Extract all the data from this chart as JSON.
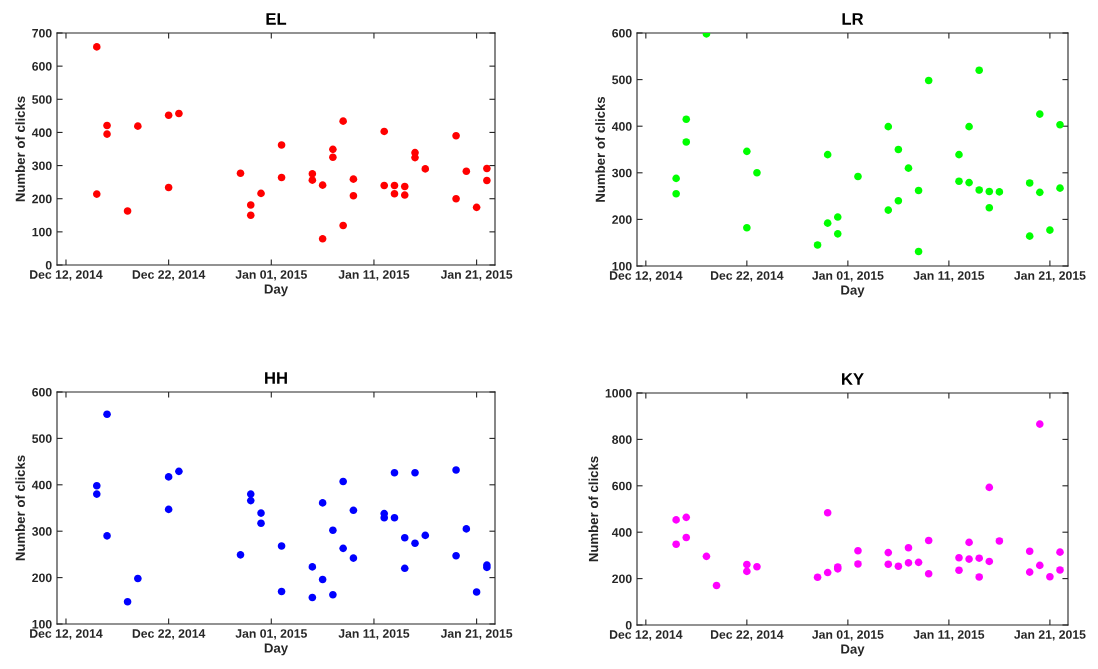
{
  "chart_data": [
    {
      "type": "scatter",
      "title": "EL",
      "xlabel": "Day",
      "ylabel": "Number of clicks",
      "marker": "circle",
      "grid": false,
      "xlim": [
        "2014-12-11T03:00",
        "2015-01-22T19:00"
      ],
      "xticks": [
        {
          "value": "2014-12-12",
          "label": "Dec 12, 2014"
        },
        {
          "value": "2014-12-22",
          "label": "Dec 22, 2014"
        },
        {
          "value": "2015-01-01",
          "label": "Jan 01, 2015"
        },
        {
          "value": "2015-01-11",
          "label": "Jan 11, 2015"
        },
        {
          "value": "2015-01-21",
          "label": "Jan 21, 2015"
        }
      ],
      "ylim": [
        0,
        700
      ],
      "yticks": [
        0,
        100,
        200,
        300,
        400,
        500,
        600,
        700
      ],
      "series": [
        {
          "color": "#ff0000",
          "x": [
            "2014-12-15",
            "2014-12-15",
            "2014-12-16",
            "2014-12-16",
            "2014-12-18",
            "2014-12-19",
            "2014-12-22",
            "2014-12-22",
            "2014-12-23",
            "2014-12-29",
            "2014-12-30",
            "2014-12-30",
            "2014-12-31",
            "2015-01-02",
            "2015-01-02",
            "2015-01-05",
            "2015-01-05",
            "2015-01-06",
            "2015-01-06",
            "2015-01-07",
            "2015-01-07",
            "2015-01-08",
            "2015-01-08",
            "2015-01-09",
            "2015-01-09",
            "2015-01-12",
            "2015-01-12",
            "2015-01-13",
            "2015-01-13",
            "2015-01-14",
            "2015-01-14",
            "2015-01-15",
            "2015-01-15",
            "2015-01-16",
            "2015-01-19",
            "2015-01-19",
            "2015-01-20",
            "2015-01-21",
            "2015-01-22",
            "2015-01-22"
          ],
          "values": [
            658,
            214,
            421,
            395,
            163,
            419,
            452,
            234,
            457,
            277,
            181,
            150,
            216,
            362,
            264,
            275,
            256,
            241,
            79,
            349,
            325,
            434,
            119,
            259,
            209,
            403,
            240,
            240,
            215,
            237,
            211,
            339,
            324,
            290,
            390,
            200,
            283,
            174,
            291,
            255
          ]
        }
      ]
    },
    {
      "type": "scatter",
      "title": "LR",
      "xlabel": "Day",
      "ylabel": "Number of clicks",
      "marker": "circle",
      "grid": false,
      "xlim": [
        "2014-12-11T03:00",
        "2015-01-22T19:00"
      ],
      "xticks": [
        {
          "value": "2014-12-12",
          "label": "Dec 12, 2014"
        },
        {
          "value": "2014-12-22",
          "label": "Dec 22, 2014"
        },
        {
          "value": "2015-01-01",
          "label": "Jan 01, 2015"
        },
        {
          "value": "2015-01-11",
          "label": "Jan 11, 2015"
        },
        {
          "value": "2015-01-21",
          "label": "Jan 21, 2015"
        }
      ],
      "ylim": [
        100,
        600
      ],
      "yticks": [
        100,
        200,
        300,
        400,
        500,
        600
      ],
      "series": [
        {
          "color": "#00ff00",
          "x": [
            "2014-12-15",
            "2014-12-15",
            "2014-12-16",
            "2014-12-16",
            "2014-12-18",
            "2014-12-22",
            "2014-12-22",
            "2014-12-23",
            "2014-12-29",
            "2014-12-30",
            "2014-12-30",
            "2014-12-31",
            "2014-12-31",
            "2015-01-02",
            "2015-01-05",
            "2015-01-05",
            "2015-01-06",
            "2015-01-06",
            "2015-01-07",
            "2015-01-08",
            "2015-01-08",
            "2015-01-09",
            "2015-01-12",
            "2015-01-12",
            "2015-01-13",
            "2015-01-13",
            "2015-01-14",
            "2015-01-14",
            "2015-01-15",
            "2015-01-15",
            "2015-01-16",
            "2015-01-19",
            "2015-01-19",
            "2015-01-20",
            "2015-01-20",
            "2015-01-21",
            "2015-01-22",
            "2015-01-22"
          ],
          "values": [
            288,
            255,
            415,
            366,
            598,
            346,
            182,
            300,
            145,
            339,
            192,
            205,
            169,
            292,
            399,
            220,
            350,
            240,
            310,
            262,
            131,
            498,
            339,
            282,
            399,
            279,
            520,
            263,
            260,
            225,
            259,
            278,
            164,
            426,
            258,
            177,
            403,
            267
          ]
        }
      ]
    },
    {
      "type": "scatter",
      "title": "HH",
      "xlabel": "Day",
      "ylabel": "Number of clicks",
      "marker": "circle",
      "grid": false,
      "xlim": [
        "2014-12-11T03:00",
        "2015-01-22T19:00"
      ],
      "xticks": [
        {
          "value": "2014-12-12",
          "label": "Dec 12, 2014"
        },
        {
          "value": "2014-12-22",
          "label": "Dec 22, 2014"
        },
        {
          "value": "2015-01-01",
          "label": "Jan 01, 2015"
        },
        {
          "value": "2015-01-11",
          "label": "Jan 11, 2015"
        },
        {
          "value": "2015-01-21",
          "label": "Jan 21, 2015"
        }
      ],
      "ylim": [
        100,
        600
      ],
      "yticks": [
        100,
        200,
        300,
        400,
        500,
        600
      ],
      "series": [
        {
          "color": "#0000ff",
          "x": [
            "2014-12-15",
            "2014-12-15",
            "2014-12-16",
            "2014-12-16",
            "2014-12-18",
            "2014-12-19",
            "2014-12-22",
            "2014-12-22",
            "2014-12-23",
            "2014-12-29",
            "2014-12-30",
            "2014-12-30",
            "2014-12-31",
            "2014-12-31",
            "2015-01-02",
            "2015-01-02",
            "2015-01-05",
            "2015-01-05",
            "2015-01-06",
            "2015-01-06",
            "2015-01-07",
            "2015-01-07",
            "2015-01-08",
            "2015-01-08",
            "2015-01-09",
            "2015-01-09",
            "2015-01-12",
            "2015-01-12",
            "2015-01-13",
            "2015-01-13",
            "2015-01-14",
            "2015-01-14",
            "2015-01-15",
            "2015-01-15",
            "2015-01-16",
            "2015-01-19",
            "2015-01-19",
            "2015-01-20",
            "2015-01-21",
            "2015-01-22",
            "2015-01-22"
          ],
          "values": [
            398,
            380,
            552,
            290,
            148,
            198,
            417,
            347,
            429,
            249,
            380,
            366,
            339,
            317,
            268,
            170,
            223,
            157,
            361,
            196,
            302,
            163,
            407,
            263,
            345,
            242,
            338,
            329,
            426,
            329,
            286,
            220,
            426,
            274,
            291,
            432,
            247,
            305,
            169,
            227,
            222
          ]
        }
      ]
    },
    {
      "type": "scatter",
      "title": "KY",
      "xlabel": "Day",
      "ylabel": "Number of clicks",
      "marker": "circle",
      "grid": false,
      "xlim": [
        "2014-12-11T03:00",
        "2015-01-22T19:00"
      ],
      "xticks": [
        {
          "value": "2014-12-12",
          "label": "Dec 12, 2014"
        },
        {
          "value": "2014-12-22",
          "label": "Dec 22, 2014"
        },
        {
          "value": "2015-01-01",
          "label": "Jan 01, 2015"
        },
        {
          "value": "2015-01-11",
          "label": "Jan 11, 2015"
        },
        {
          "value": "2015-01-21",
          "label": "Jan 21, 2015"
        }
      ],
      "ylim": [
        0,
        1000
      ],
      "yticks": [
        0,
        200,
        400,
        600,
        800,
        1000
      ],
      "series": [
        {
          "color": "#ff00ff",
          "x": [
            "2014-12-15",
            "2014-12-15",
            "2014-12-16",
            "2014-12-16",
            "2014-12-18",
            "2014-12-19",
            "2014-12-22",
            "2014-12-22",
            "2014-12-23",
            "2014-12-29",
            "2014-12-30",
            "2014-12-30",
            "2014-12-31",
            "2014-12-31",
            "2015-01-02",
            "2015-01-02",
            "2015-01-05",
            "2015-01-05",
            "2015-01-06",
            "2015-01-07",
            "2015-01-07",
            "2015-01-08",
            "2015-01-09",
            "2015-01-09",
            "2015-01-12",
            "2015-01-12",
            "2015-01-13",
            "2015-01-13",
            "2015-01-14",
            "2015-01-14",
            "2015-01-15",
            "2015-01-15",
            "2015-01-16",
            "2015-01-19",
            "2015-01-19",
            "2015-01-20",
            "2015-01-20",
            "2015-01-21",
            "2015-01-22",
            "2015-01-22"
          ],
          "values": [
            453,
            348,
            464,
            377,
            296,
            170,
            261,
            231,
            251,
            206,
            484,
            226,
            250,
            242,
            320,
            263,
            312,
            262,
            253,
            333,
            268,
            270,
            364,
            221,
            290,
            236,
            356,
            284,
            288,
            207,
            593,
            274,
            362,
            318,
            228,
            866,
            257,
            208,
            314,
            237
          ]
        }
      ]
    }
  ]
}
